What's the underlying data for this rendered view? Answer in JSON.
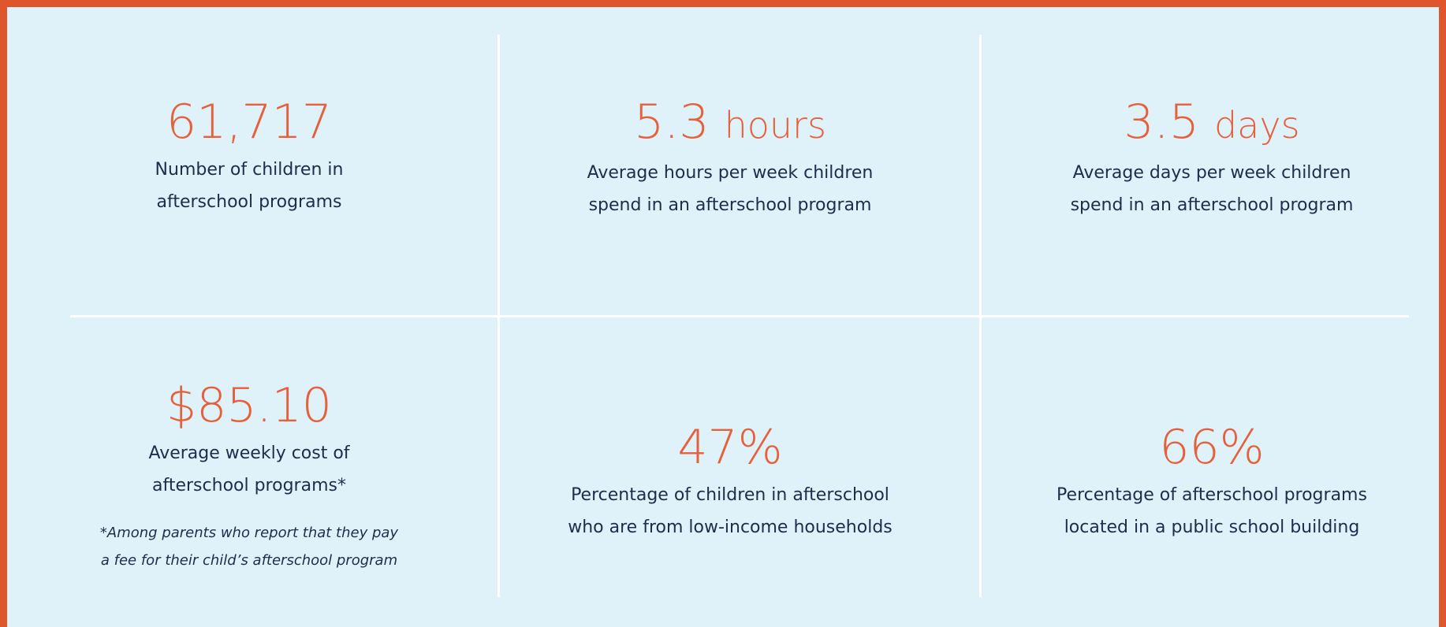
{
  "stats": [
    {
      "value": "61,717",
      "description": [
        "Number of children in",
        "afterschool programs"
      ]
    },
    {
      "value": "5.3",
      "unit": "hours",
      "description": [
        "Average hours per week children",
        "spend in an afterschool program"
      ]
    },
    {
      "value": "3.5",
      "unit": "days",
      "description": [
        "Average days per week children",
        "spend in an afterschool program"
      ]
    },
    {
      "value": "$85.10",
      "description": [
        "Average weekly cost of",
        "afterschool programs*"
      ],
      "footnote": [
        "*Among parents who report that they pay",
        "a fee for their child’s afterschool program"
      ]
    },
    {
      "value": "47%",
      "description": [
        "Percentage of children in afterschool",
        "who are from low-income households"
      ]
    },
    {
      "value": "66%",
      "description": [
        "Percentage of afterschool programs",
        "located in a public school building"
      ]
    }
  ]
}
